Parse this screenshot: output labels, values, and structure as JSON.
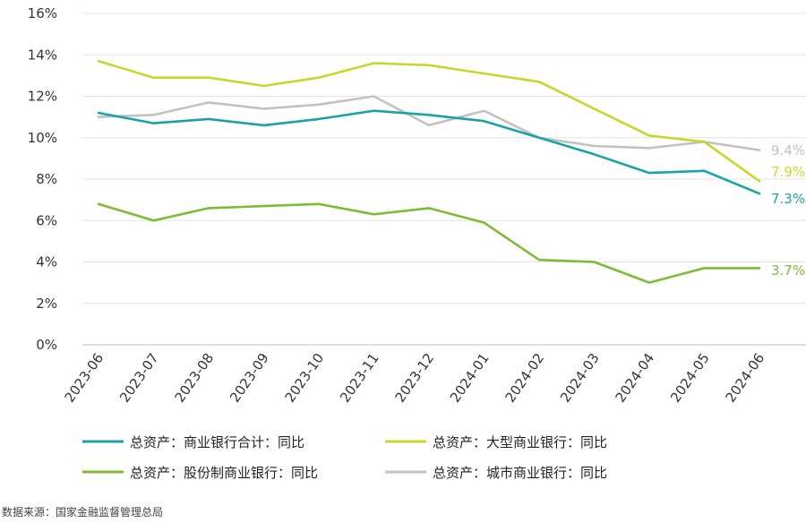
{
  "chart_data": {
    "type": "line",
    "x": [
      "2023-06",
      "2023-07",
      "2023-08",
      "2023-09",
      "2023-10",
      "2023-11",
      "2023-12",
      "2024-01",
      "2024-02",
      "2024-03",
      "2024-04",
      "2024-05",
      "2024-06"
    ],
    "y_ticks": [
      "0%",
      "2%",
      "4%",
      "6%",
      "8%",
      "10%",
      "12%",
      "14%",
      "16%"
    ],
    "ylim": [
      0,
      16
    ],
    "grid": true,
    "legend_position": "bottom",
    "series": [
      {
        "name": "总资产：商业银行合计：同比",
        "color": "#1AA3A7",
        "values": [
          11.2,
          10.7,
          10.9,
          10.6,
          10.9,
          11.3,
          11.1,
          10.8,
          10.0,
          9.2,
          8.3,
          8.4,
          7.3
        ],
        "end_label": "7.3%"
      },
      {
        "name": "总资产：大型商业银行：同比",
        "color": "#C8D72B",
        "values": [
          13.7,
          12.9,
          12.9,
          12.5,
          12.9,
          13.6,
          13.5,
          13.1,
          12.7,
          11.4,
          10.1,
          9.8,
          7.9
        ],
        "end_label": "7.9%"
      },
      {
        "name": "总资产：股份制商业银行：同比",
        "color": "#7DBC35",
        "values": [
          6.8,
          6.0,
          6.6,
          6.7,
          6.8,
          6.3,
          6.6,
          5.9,
          4.1,
          4.0,
          3.0,
          3.7,
          3.7
        ],
        "end_label": "3.7%"
      },
      {
        "name": "总资产：城市商业银行：同比",
        "color": "#C2C2C2",
        "values": [
          11.0,
          11.1,
          11.7,
          11.4,
          11.6,
          12.0,
          10.6,
          11.3,
          10.0,
          9.6,
          9.5,
          9.8,
          9.4
        ],
        "end_label": "9.4%"
      }
    ],
    "source": "数据来源：国家金融监督管理总局"
  }
}
